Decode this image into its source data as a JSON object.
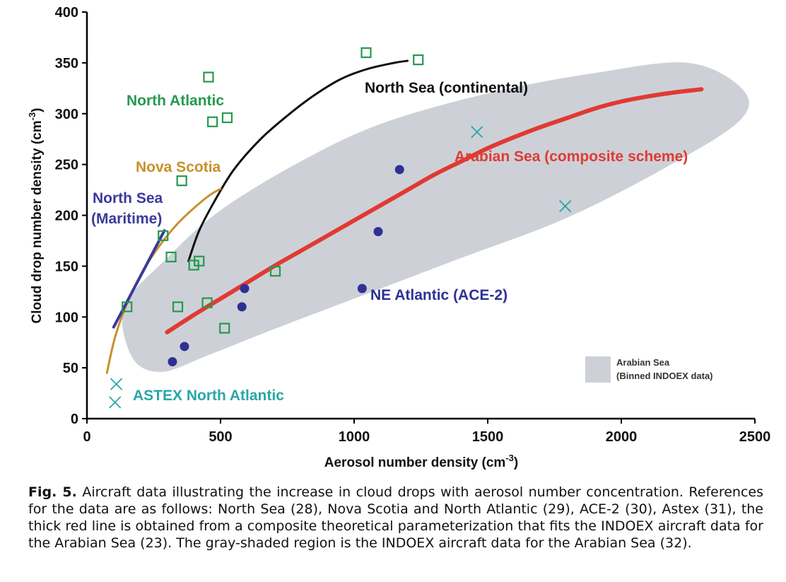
{
  "chart_data": {
    "type": "scatter",
    "xlabel": "Aerosol number density (cm",
    "xlabel_sup": "-3",
    "xlabel_end": ")",
    "ylabel": "Cloud drop number density (cm",
    "ylabel_sup": "-3",
    "ylabel_end": ")",
    "xlim": [
      0,
      2500
    ],
    "ylim": [
      0,
      400
    ],
    "xticks": [
      0,
      500,
      1000,
      1500,
      2000,
      2500
    ],
    "yticks": [
      0,
      50,
      100,
      150,
      200,
      250,
      300,
      350,
      400
    ],
    "grid": false,
    "region": {
      "name": "Arabian Sea (Binned INDOEX data)",
      "color": "#cdd1d7",
      "upper": [
        [
          140,
          110
        ],
        [
          300,
          158
        ],
        [
          500,
          205
        ],
        [
          800,
          253
        ],
        [
          1100,
          290
        ],
        [
          1500,
          320
        ],
        [
          1900,
          340
        ],
        [
          2250,
          350
        ],
        [
          2450,
          325
        ]
      ],
      "lower": [
        [
          2450,
          295
        ],
        [
          2200,
          252
        ],
        [
          1800,
          198
        ],
        [
          1400,
          158
        ],
        [
          1000,
          118
        ],
        [
          700,
          88
        ],
        [
          450,
          62
        ],
        [
          280,
          46
        ],
        [
          170,
          60
        ]
      ]
    },
    "curves": [
      {
        "name": "Arabian Sea (composite scheme)",
        "color": "#e03a33",
        "width": 6,
        "points": [
          [
            300,
            85
          ],
          [
            400,
            102
          ],
          [
            500,
            118
          ],
          [
            600,
            134
          ],
          [
            700,
            150
          ],
          [
            800,
            165
          ],
          [
            900,
            180
          ],
          [
            1000,
            195
          ],
          [
            1100,
            210
          ],
          [
            1200,
            225
          ],
          [
            1300,
            240
          ],
          [
            1400,
            253
          ],
          [
            1500,
            266
          ],
          [
            1600,
            277
          ],
          [
            1700,
            287
          ],
          [
            1800,
            296
          ],
          [
            1900,
            305
          ],
          [
            2000,
            312
          ],
          [
            2100,
            317
          ],
          [
            2200,
            321
          ],
          [
            2300,
            324
          ]
        ]
      },
      {
        "name": "North Sea (continental)",
        "color": "#111111",
        "width": 3,
        "points": [
          [
            380,
            155
          ],
          [
            420,
            185
          ],
          [
            480,
            215
          ],
          [
            550,
            245
          ],
          [
            650,
            275
          ],
          [
            750,
            298
          ],
          [
            850,
            318
          ],
          [
            950,
            334
          ],
          [
            1050,
            344
          ],
          [
            1150,
            350
          ],
          [
            1200,
            352
          ]
        ]
      },
      {
        "name": "Nova Scotia",
        "color": "#c8902c",
        "width": 3,
        "points": [
          [
            75,
            45
          ],
          [
            100,
            75
          ],
          [
            130,
            100
          ],
          [
            170,
            125
          ],
          [
            220,
            150
          ],
          [
            280,
            173
          ],
          [
            340,
            192
          ],
          [
            400,
            207
          ],
          [
            460,
            220
          ],
          [
            500,
            226
          ]
        ]
      },
      {
        "name": "North Sea (Maritime)",
        "color": "#3a3a9c",
        "width": 4,
        "points": [
          [
            100,
            90
          ],
          [
            140,
            110
          ],
          [
            180,
            130
          ],
          [
            220,
            150
          ],
          [
            260,
            170
          ],
          [
            290,
            185
          ]
        ]
      }
    ],
    "series": [
      {
        "name": "North Atlantic",
        "marker": "square",
        "color": "#249a4e",
        "points": [
          [
            150,
            110
          ],
          [
            285,
            180
          ],
          [
            315,
            159
          ],
          [
            340,
            110
          ],
          [
            355,
            234
          ],
          [
            400,
            151
          ],
          [
            420,
            155
          ],
          [
            450,
            114
          ],
          [
            455,
            336
          ],
          [
            470,
            292
          ],
          [
            515,
            89
          ],
          [
            525,
            296
          ],
          [
            705,
            145
          ],
          [
            1045,
            360
          ],
          [
            1240,
            353
          ]
        ]
      },
      {
        "name": "NE Atlantic (ACE-2)",
        "marker": "circle",
        "color": "#2e3192",
        "points": [
          [
            320,
            56
          ],
          [
            365,
            71
          ],
          [
            580,
            110
          ],
          [
            590,
            128
          ],
          [
            1030,
            128
          ],
          [
            1090,
            184
          ],
          [
            1170,
            245
          ]
        ]
      },
      {
        "name": "ASTEX North Atlantic",
        "marker": "x",
        "color": "#2aa6a6",
        "points": [
          [
            110,
            34
          ],
          [
            105,
            16
          ],
          [
            1460,
            282
          ],
          [
            1790,
            209
          ]
        ]
      }
    ],
    "annotations": [
      {
        "text": "North Atlantic",
        "color": "#249a4e"
      },
      {
        "text": "North Sea (continental)",
        "color": "#111111"
      },
      {
        "text": "Nova Scotia",
        "color": "#c8902c"
      },
      {
        "text": "North Sea",
        "color": "#3a3a9c"
      },
      {
        "text": "(Maritime)",
        "color": "#3a3a9c"
      },
      {
        "text": "Arabian Sea (composite scheme)",
        "color": "#e03a33"
      },
      {
        "text": "NE Atlantic (ACE-2)",
        "color": "#2e3192"
      },
      {
        "text": "ASTEX North Atlantic",
        "color": "#2aa6a6"
      }
    ],
    "legend": {
      "placement": "bottom-right",
      "line1": "Arabian Sea",
      "line2": "(Binned INDOEX data)"
    }
  },
  "caption": {
    "label": "Fig. 5.",
    "text": " Aircraft data illustrating the increase in cloud drops with aerosol number concentration. References for the data are as follows: North Sea (28), Nova Scotia and North Atlantic (29), ACE-2 (30), Astex (31), the thick red line is obtained from a composite theoretical parameterization that fits the INDOEX aircraft data for the Arabian Sea (23). The gray-shaded region is the INDOEX aircraft data for the Arabian Sea (32)."
  }
}
